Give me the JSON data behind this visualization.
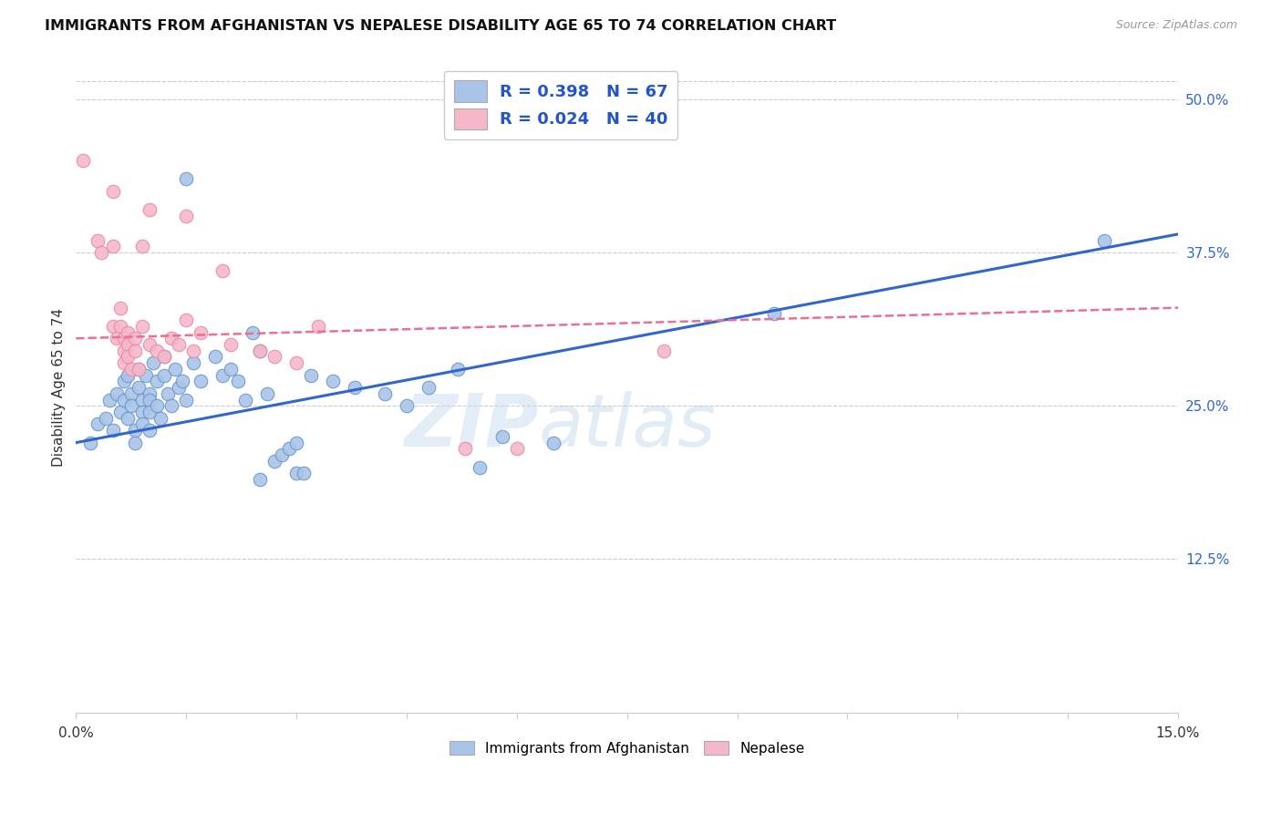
{
  "title": "IMMIGRANTS FROM AFGHANISTAN VS NEPALESE DISABILITY AGE 65 TO 74 CORRELATION CHART",
  "source": "Source: ZipAtlas.com",
  "ylabel": "Disability Age 65 to 74",
  "xmin": 0.0,
  "xmax": 15.0,
  "ymin": 0.0,
  "ymax": 53.0,
  "yticks": [
    12.5,
    25.0,
    37.5,
    50.0
  ],
  "ytick_labels": [
    "12.5%",
    "25.0%",
    "37.5%",
    "50.0%"
  ],
  "r_blue": "0.398",
  "n_blue": "67",
  "r_pink": "0.024",
  "n_pink": "40",
  "watermark_line1": "ZIP",
  "watermark_line2": "atlas",
  "blue_color": "#aac4e8",
  "blue_edge": "#6699cc",
  "pink_color": "#f5b8c8",
  "pink_edge": "#e888aa",
  "trend_blue_color": "#3366cc",
  "trend_pink_color": "#e87090",
  "legend_text_color": "#2255cc",
  "blue_points": [
    [
      0.2,
      22.0
    ],
    [
      0.3,
      23.5
    ],
    [
      0.4,
      24.0
    ],
    [
      0.45,
      25.5
    ],
    [
      0.5,
      23.0
    ],
    [
      0.55,
      26.0
    ],
    [
      0.6,
      24.5
    ],
    [
      0.65,
      27.0
    ],
    [
      0.65,
      25.5
    ],
    [
      0.7,
      24.0
    ],
    [
      0.7,
      27.5
    ],
    [
      0.75,
      26.0
    ],
    [
      0.75,
      25.0
    ],
    [
      0.8,
      23.0
    ],
    [
      0.8,
      22.0
    ],
    [
      0.85,
      28.0
    ],
    [
      0.85,
      26.5
    ],
    [
      0.9,
      25.5
    ],
    [
      0.9,
      24.5
    ],
    [
      0.9,
      23.5
    ],
    [
      0.95,
      27.5
    ],
    [
      1.0,
      26.0
    ],
    [
      1.0,
      25.5
    ],
    [
      1.0,
      24.5
    ],
    [
      1.0,
      23.0
    ],
    [
      1.05,
      28.5
    ],
    [
      1.1,
      27.0
    ],
    [
      1.1,
      25.0
    ],
    [
      1.15,
      24.0
    ],
    [
      1.2,
      29.0
    ],
    [
      1.2,
      27.5
    ],
    [
      1.25,
      26.0
    ],
    [
      1.3,
      25.0
    ],
    [
      1.35,
      28.0
    ],
    [
      1.4,
      26.5
    ],
    [
      1.45,
      27.0
    ],
    [
      1.5,
      25.5
    ],
    [
      1.6,
      28.5
    ],
    [
      1.7,
      27.0
    ],
    [
      1.9,
      29.0
    ],
    [
      2.0,
      27.5
    ],
    [
      2.1,
      28.0
    ],
    [
      2.2,
      27.0
    ],
    [
      2.3,
      25.5
    ],
    [
      2.4,
      31.0
    ],
    [
      2.5,
      29.5
    ],
    [
      2.6,
      26.0
    ],
    [
      2.7,
      20.5
    ],
    [
      2.8,
      21.0
    ],
    [
      2.9,
      21.5
    ],
    [
      3.0,
      22.0
    ],
    [
      3.2,
      27.5
    ],
    [
      3.5,
      27.0
    ],
    [
      3.8,
      26.5
    ],
    [
      4.2,
      26.0
    ],
    [
      4.5,
      25.0
    ],
    [
      4.8,
      26.5
    ],
    [
      5.2,
      28.0
    ],
    [
      5.5,
      20.0
    ],
    [
      5.8,
      22.5
    ],
    [
      6.5,
      22.0
    ],
    [
      3.0,
      19.5
    ],
    [
      3.1,
      19.5
    ],
    [
      2.5,
      19.0
    ],
    [
      1.5,
      43.5
    ],
    [
      9.5,
      32.5
    ],
    [
      14.0,
      38.5
    ]
  ],
  "pink_points": [
    [
      0.1,
      45.0
    ],
    [
      0.5,
      42.5
    ],
    [
      1.0,
      41.0
    ],
    [
      1.5,
      40.5
    ],
    [
      0.3,
      38.5
    ],
    [
      0.35,
      37.5
    ],
    [
      0.5,
      38.0
    ],
    [
      0.5,
      31.5
    ],
    [
      0.55,
      30.5
    ],
    [
      0.6,
      33.0
    ],
    [
      0.6,
      31.5
    ],
    [
      0.65,
      30.5
    ],
    [
      0.65,
      29.5
    ],
    [
      0.65,
      28.5
    ],
    [
      0.7,
      31.0
    ],
    [
      0.7,
      30.0
    ],
    [
      0.7,
      29.0
    ],
    [
      0.75,
      28.0
    ],
    [
      0.8,
      30.5
    ],
    [
      0.8,
      29.5
    ],
    [
      0.85,
      28.0
    ],
    [
      0.9,
      38.0
    ],
    [
      0.9,
      31.5
    ],
    [
      1.0,
      30.0
    ],
    [
      1.1,
      29.5
    ],
    [
      1.2,
      29.0
    ],
    [
      1.3,
      30.5
    ],
    [
      1.4,
      30.0
    ],
    [
      1.5,
      32.0
    ],
    [
      1.6,
      29.5
    ],
    [
      1.7,
      31.0
    ],
    [
      2.0,
      36.0
    ],
    [
      2.1,
      30.0
    ],
    [
      2.5,
      29.5
    ],
    [
      2.7,
      29.0
    ],
    [
      3.0,
      28.5
    ],
    [
      3.3,
      31.5
    ],
    [
      5.3,
      21.5
    ],
    [
      6.0,
      21.5
    ],
    [
      8.0,
      29.5
    ]
  ],
  "blue_line": [
    [
      0.0,
      22.0
    ],
    [
      15.0,
      39.0
    ]
  ],
  "pink_line": [
    [
      0.0,
      30.5
    ],
    [
      15.0,
      33.0
    ]
  ],
  "grid_color": "#cccccc",
  "top_border_color": "#cccccc"
}
